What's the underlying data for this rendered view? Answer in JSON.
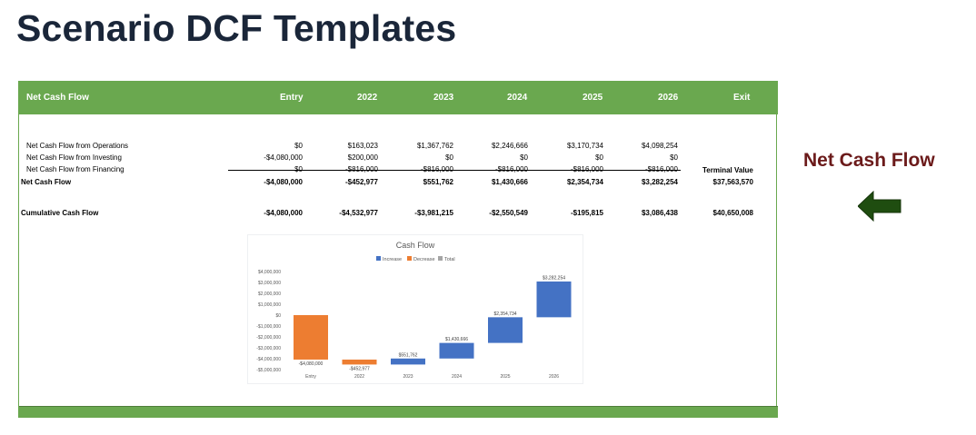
{
  "page_title": "Scenario DCF Templates",
  "side_label": "Net Cash Flow",
  "colors": {
    "header_green": "#6aa84f",
    "title_navy": "#1a2639",
    "side_red": "#6b1a1a",
    "arrow_green": "#1f4d10",
    "increase": "#4472c4",
    "decrease": "#ed7d31",
    "total": "#a5a5a5"
  },
  "icons": {
    "arrow": "left-arrow-icon"
  },
  "table": {
    "header": [
      "Net Cash Flow",
      "Entry",
      "2022",
      "2023",
      "2024",
      "2025",
      "2026",
      "Exit"
    ],
    "rows": [
      {
        "label": "Net Cash Flow from Operations",
        "values": [
          "$0",
          "$163,023",
          "$1,367,762",
          "$2,246,666",
          "$3,170,734",
          "$4,098,254",
          ""
        ]
      },
      {
        "label": "Net Cash Flow from Investing",
        "values": [
          "-$4,080,000",
          "$200,000",
          "$0",
          "$0",
          "$0",
          "$0",
          ""
        ]
      },
      {
        "label": "Net Cash Flow from Financing",
        "values": [
          "$0",
          "-$816,000",
          "-$816,000",
          "-$816,000",
          "-$816,000",
          "-$816,000",
          "Terminal Value"
        ]
      },
      {
        "label": "Net Cash Flow",
        "values": [
          "-$4,080,000",
          "-$452,977",
          "$551,762",
          "$1,430,666",
          "$2,354,734",
          "$3,282,254",
          "$37,563,570"
        ]
      },
      {
        "label": "Cumulative Cash Flow",
        "values": [
          "-$4,080,000",
          "-$4,532,977",
          "-$3,981,215",
          "-$2,550,549",
          "-$195,815",
          "$3,086,438",
          "$40,650,008"
        ]
      }
    ]
  },
  "chart_data": {
    "type": "bar",
    "subtype": "waterfall",
    "title": "Cash Flow",
    "legend": [
      "Increase",
      "Decrease",
      "Total"
    ],
    "legend_position": "top",
    "categories": [
      "Entry",
      "2022",
      "2023",
      "2024",
      "2025",
      "2026"
    ],
    "values": [
      -4080000,
      -452977,
      551762,
      1430666,
      2354734,
      3282254
    ],
    "data_labels": [
      "-$4,080,000",
      "-$452,977",
      "$551,762",
      "$1,430,666",
      "$2,354,734",
      "$3,282,254"
    ],
    "bar_series": [
      "Decrease",
      "Decrease",
      "Increase",
      "Increase",
      "Increase",
      "Increase"
    ],
    "y_ticks": [
      4000000,
      3000000,
      2000000,
      1000000,
      0,
      -1000000,
      -2000000,
      -3000000,
      -4000000,
      -5000000
    ],
    "y_tick_labels": [
      "$4,000,000",
      "$3,000,000",
      "$2,000,000",
      "$1,000,000",
      "$0",
      "-$1,000,000",
      "-$2,000,000",
      "-$3,000,000",
      "-$4,000,000",
      "-$5,000,000"
    ],
    "ylim": [
      -5000000,
      4000000
    ],
    "grid": false
  }
}
